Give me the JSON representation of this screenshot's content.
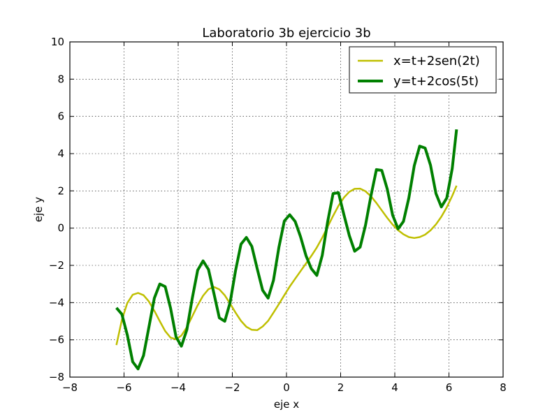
{
  "chart_data": {
    "type": "line",
    "title": "Laboratorio 3b ejercicio 3b",
    "xlabel": "eje x",
    "ylabel": "eje y",
    "xlim": [
      -8,
      8
    ],
    "ylim": [
      -8,
      10
    ],
    "xticks": [
      -8,
      -6,
      -4,
      -2,
      0,
      2,
      4,
      6,
      8
    ],
    "yticks": [
      -8,
      -6,
      -4,
      -2,
      0,
      2,
      4,
      6,
      8,
      10
    ],
    "xtick_labels": [
      "−8",
      "−6",
      "−4",
      "−2",
      "0",
      "2",
      "4",
      "6",
      "8"
    ],
    "ytick_labels": [
      "−8",
      "−6",
      "−4",
      "−2",
      "0",
      "2",
      "4",
      "6",
      "8",
      "10"
    ],
    "grid": true,
    "legend_position": "top-right",
    "series": [
      {
        "name": "x=t+2sen(2t)",
        "color": "#bfbf00",
        "line_width": "thin",
        "x": [
          -6.28,
          -6.08,
          -5.88,
          -5.68,
          -5.48,
          -5.28,
          -5.08,
          -4.88,
          -4.68,
          -4.48,
          -4.28,
          -4.08,
          -3.88,
          -3.68,
          -3.48,
          -3.28,
          -3.08,
          -2.88,
          -2.68,
          -2.48,
          -2.28,
          -2.08,
          -1.88,
          -1.68,
          -1.48,
          -1.28,
          -1.08,
          -0.88,
          -0.68,
          -0.48,
          -0.28,
          -0.08,
          0.12,
          0.32,
          0.52,
          0.72,
          0.92,
          1.12,
          1.32,
          1.52,
          1.72,
          1.92,
          2.12,
          2.32,
          2.52,
          2.72,
          2.92,
          3.12,
          3.32,
          3.52,
          3.72,
          3.92,
          4.12,
          4.32,
          4.52,
          4.72,
          4.92,
          5.12,
          5.32,
          5.52,
          5.72,
          5.92,
          6.12,
          6.28
        ],
        "y": [
          -6.28,
          -4.93,
          -4.02,
          -3.58,
          -3.48,
          -3.6,
          -3.94,
          -4.44,
          -5.0,
          -5.53,
          -5.88,
          -5.97,
          -5.77,
          -5.32,
          -4.74,
          -4.14,
          -3.63,
          -3.28,
          -3.16,
          -3.29,
          -3.61,
          -4.06,
          -4.54,
          -4.98,
          -5.3,
          -5.46,
          -5.48,
          -5.28,
          -4.98,
          -4.54,
          -4.08,
          -3.6,
          -3.14,
          -2.72,
          -2.31,
          -1.9,
          -1.49,
          -1.04,
          -0.51,
          0.07,
          0.66,
          1.2,
          1.64,
          1.95,
          2.11,
          2.12,
          1.98,
          1.71,
          1.35,
          0.95,
          0.55,
          0.19,
          -0.11,
          -0.33,
          -0.48,
          -0.53,
          -0.48,
          -0.35,
          -0.12,
          0.2,
          0.61,
          1.12,
          1.73,
          2.28
        ]
      },
      {
        "name": "y=t+2cos(5t)",
        "color": "#008000",
        "line_width": "thick",
        "x": [
          -6.28,
          -6.08,
          -5.88,
          -5.68,
          -5.48,
          -5.28,
          -5.08,
          -4.88,
          -4.68,
          -4.48,
          -4.28,
          -4.08,
          -3.88,
          -3.68,
          -3.48,
          -3.28,
          -3.08,
          -2.88,
          -2.68,
          -2.48,
          -2.28,
          -2.08,
          -1.88,
          -1.68,
          -1.48,
          -1.28,
          -1.08,
          -0.88,
          -0.68,
          -0.48,
          -0.28,
          -0.08,
          0.12,
          0.32,
          0.52,
          0.72,
          0.92,
          1.12,
          1.32,
          1.52,
          1.72,
          1.92,
          2.12,
          2.32,
          2.52,
          2.72,
          2.92,
          3.12,
          3.32,
          3.52,
          3.72,
          3.92,
          4.12,
          4.32,
          4.52,
          4.72,
          4.92,
          5.12,
          5.32,
          5.52,
          5.72,
          5.92,
          6.12,
          6.28
        ],
        "y": [
          -4.28,
          -4.62,
          -5.74,
          -7.18,
          -7.56,
          -6.84,
          -5.32,
          -3.76,
          -3.0,
          -3.14,
          -4.3,
          -5.84,
          -6.34,
          -5.46,
          -3.78,
          -2.26,
          -1.76,
          -2.22,
          -3.5,
          -4.82,
          -5.0,
          -3.98,
          -2.28,
          -0.86,
          -0.5,
          -0.98,
          -2.18,
          -3.34,
          -3.76,
          -2.8,
          -1.04,
          0.38,
          0.72,
          0.36,
          -0.46,
          -1.48,
          -2.18,
          -2.54,
          -1.46,
          0.34,
          1.86,
          1.9,
          0.72,
          -0.4,
          -1.24,
          -1.02,
          0.16,
          1.74,
          3.14,
          3.1,
          2.1,
          0.7,
          -0.04,
          0.36,
          1.62,
          3.36,
          4.4,
          4.3,
          3.38,
          1.86,
          1.14,
          1.62,
          3.2,
          5.3
        ]
      }
    ]
  }
}
